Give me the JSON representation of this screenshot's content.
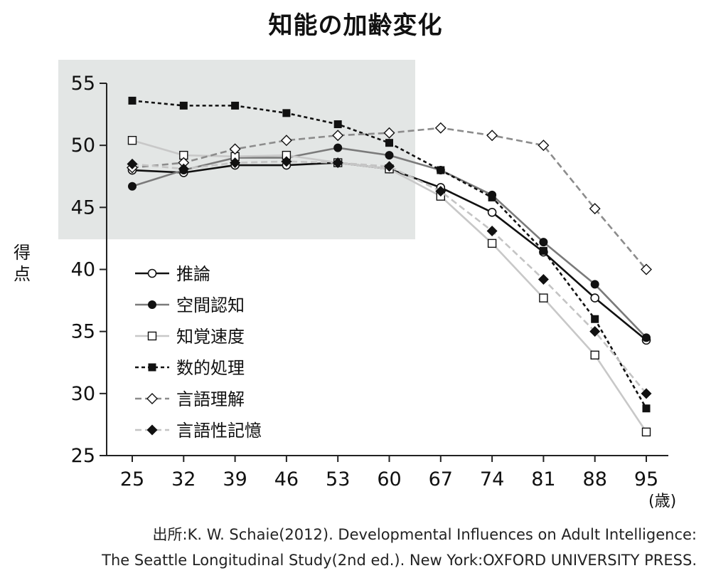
{
  "chart_data": {
    "type": "line",
    "title": "知能の加齢変化",
    "ylabel": "得点",
    "xlabel_unit": "(歳)",
    "x": [
      25,
      32,
      39,
      46,
      53,
      60,
      67,
      74,
      81,
      88,
      95
    ],
    "ylim": [
      25,
      55
    ],
    "yticks": [
      25,
      30,
      35,
      40,
      45,
      50,
      55
    ],
    "highlight_region": {
      "x_from": 25,
      "x_to": 60,
      "y_from": 43,
      "y_to": 55,
      "color": "#e3e6e5"
    },
    "legend_position": "center-left",
    "series": [
      {
        "name": "推論",
        "color": "#111111",
        "line": "solid",
        "marker": "circle-open",
        "values": [
          48.0,
          47.8,
          48.4,
          48.4,
          48.6,
          48.1,
          46.6,
          44.6,
          41.4,
          37.7,
          34.3
        ]
      },
      {
        "name": "空間認知",
        "color": "#7a7a7a",
        "line": "solid",
        "marker": "circle-filled",
        "values": [
          46.7,
          48.0,
          49.0,
          49.0,
          49.8,
          49.2,
          48.0,
          46.0,
          42.2,
          38.8,
          34.5
        ]
      },
      {
        "name": "知覚速度",
        "color": "#c8c8c8",
        "line": "solid",
        "marker": "square-open",
        "values": [
          50.4,
          49.2,
          49.1,
          49.2,
          48.6,
          48.1,
          45.9,
          42.1,
          37.7,
          33.1,
          26.9
        ]
      },
      {
        "name": "数的処理",
        "color": "#111111",
        "line": "dotted",
        "marker": "square-filled",
        "values": [
          53.6,
          53.2,
          53.2,
          52.6,
          51.7,
          50.2,
          48.0,
          45.8,
          41.5,
          36.0,
          28.8
        ]
      },
      {
        "name": "言語理解",
        "color": "#8c8c8c",
        "line": "dashed",
        "marker": "diamond-open",
        "values": [
          48.2,
          48.6,
          49.7,
          50.4,
          50.8,
          51.0,
          51.4,
          50.8,
          50.0,
          44.9,
          40.0
        ]
      },
      {
        "name": "言語性記憶",
        "color": "#c4c4c4",
        "line": "dashed",
        "marker": "diamond-filled",
        "values": [
          48.5,
          48.1,
          48.6,
          48.7,
          48.6,
          48.3,
          46.3,
          43.1,
          39.2,
          35.0,
          30.0
        ]
      }
    ]
  },
  "source": {
    "line1": "出所:K. W. Schaie(2012). Developmental Influences on Adult Intelligence:",
    "line2": "The Seattle Longitudinal Study(2nd ed.). New York:OXFORD UNIVERSITY PRESS."
  }
}
